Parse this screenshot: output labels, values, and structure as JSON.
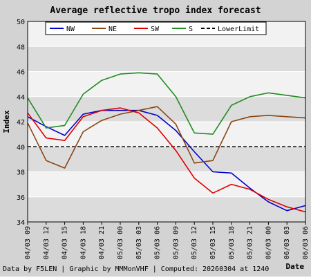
{
  "chart_data": {
    "type": "line",
    "title": "Average reflective tropo index forecast",
    "xlabel": "Date",
    "ylabel": "Index",
    "ylim": [
      34,
      50
    ],
    "yticks": [
      34,
      36,
      38,
      40,
      42,
      44,
      46,
      48,
      50
    ],
    "categories": [
      "04/03 09",
      "04/03 12",
      "04/03 15",
      "04/03 18",
      "04/03 21",
      "05/03 00",
      "05/03 03",
      "05/03 06",
      "05/03 09",
      "05/03 12",
      "05/03 15",
      "05/03 18",
      "05/03 21",
      "06/03 00",
      "06/03 03",
      "06/03 06"
    ],
    "series": [
      {
        "name": "NW",
        "color": "#0000cc",
        "values": [
          42.4,
          41.6,
          40.9,
          42.6,
          42.9,
          42.9,
          42.9,
          42.5,
          41.3,
          39.6,
          38.0,
          37.9,
          36.7,
          35.6,
          34.9,
          35.3
        ]
      },
      {
        "name": "NE",
        "color": "#8b4513",
        "values": [
          41.9,
          38.9,
          38.3,
          41.2,
          42.1,
          42.6,
          42.9,
          43.2,
          41.8,
          38.7,
          38.9,
          42.0,
          42.4,
          42.5,
          42.4,
          42.3
        ]
      },
      {
        "name": "SW",
        "color": "#dd0000",
        "values": [
          42.7,
          40.7,
          40.5,
          42.4,
          42.9,
          43.1,
          42.7,
          41.5,
          39.7,
          37.5,
          36.3,
          37.0,
          36.6,
          35.8,
          35.2,
          34.8
        ]
      },
      {
        "name": "S",
        "color": "#228b22",
        "values": [
          43.9,
          41.5,
          41.7,
          44.2,
          45.3,
          45.8,
          45.9,
          45.8,
          44.0,
          41.1,
          41.0,
          43.3,
          44.0,
          44.3,
          44.1,
          43.9
        ]
      }
    ],
    "reference_line": {
      "name": "LowerLimit",
      "value": 40,
      "color": "#000000",
      "style": "dashed"
    },
    "legend_position": "top-right",
    "footer": "Data by F5LEN | Graphic by MMMonVHF | Computed: 20260304 at 1240"
  }
}
